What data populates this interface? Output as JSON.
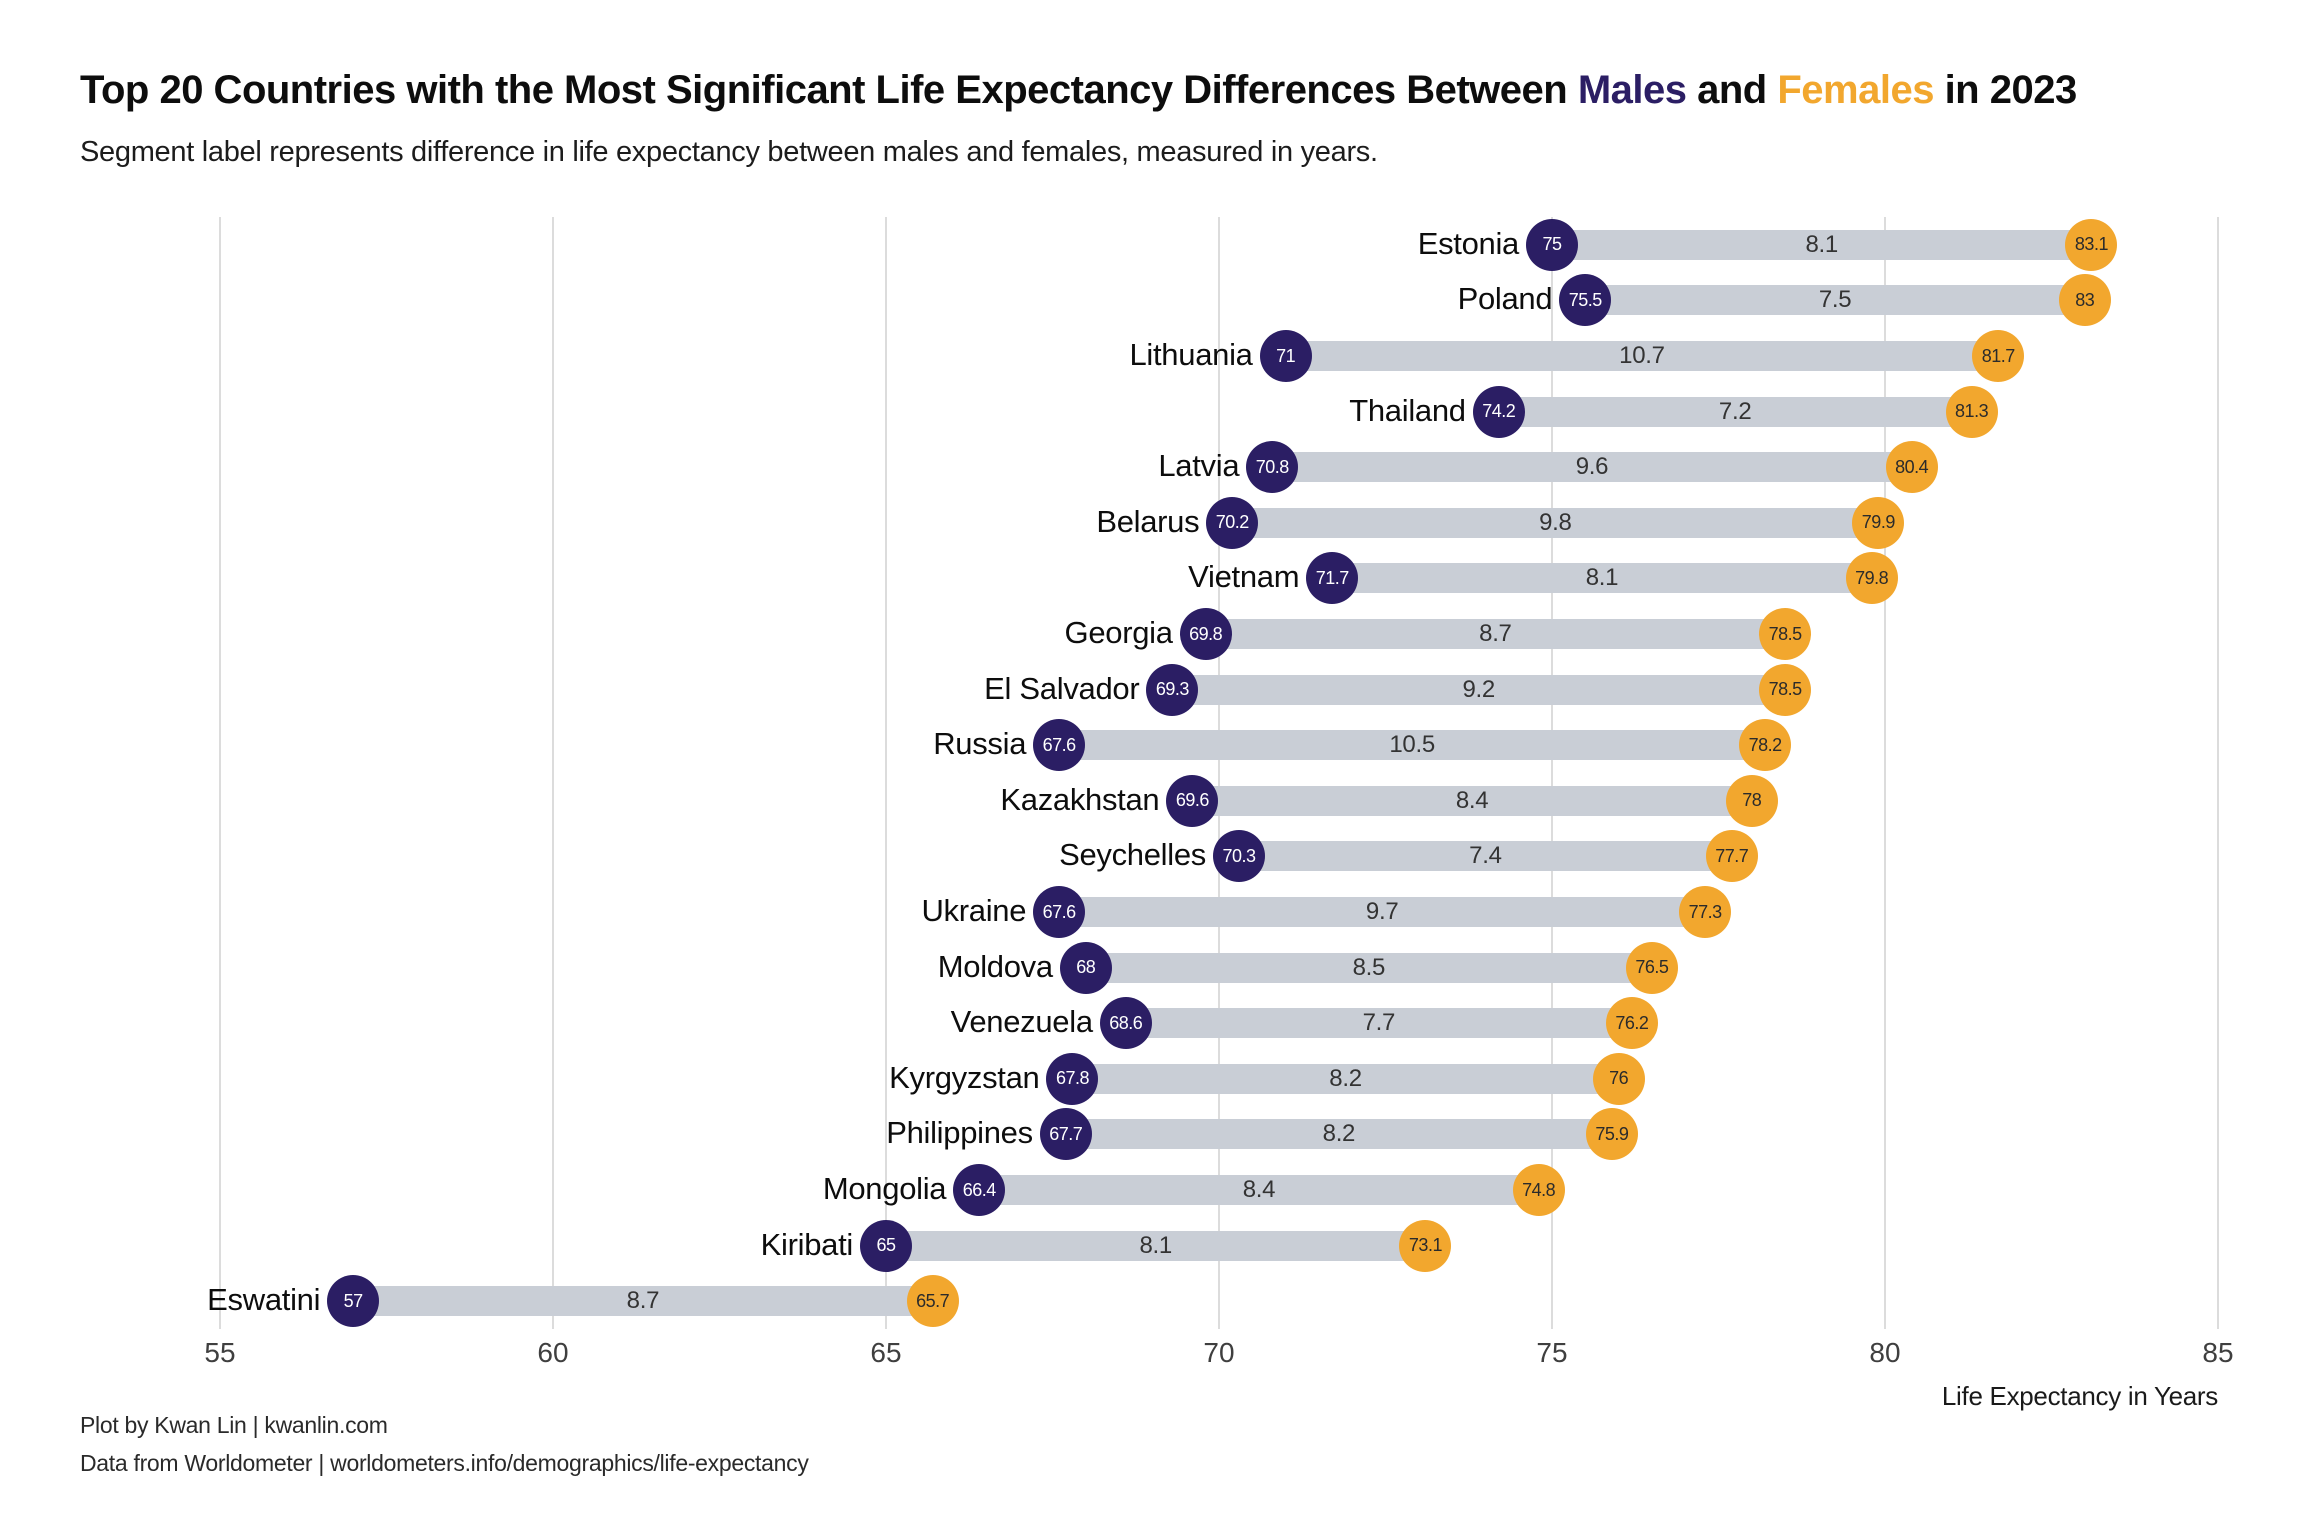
{
  "title": {
    "prefix": "Top 20 Countries with the Most Significant Life Expectancy Differences Between ",
    "males": "Males",
    "and": " and ",
    "females": "Females",
    "suffix": " in 2023"
  },
  "subtitle": "Segment label represents difference in life expectancy between males and females, measured in years.",
  "colors": {
    "male": "#2B1E64",
    "female": "#F2A72E",
    "bar": "#C9CED6",
    "gridline": "#DCDCDC",
    "diff_text": "#333333"
  },
  "axis": {
    "label": "Life Expectancy in Years",
    "min": 55,
    "max": 85,
    "ticks": [
      55,
      60,
      65,
      70,
      75,
      80,
      85
    ]
  },
  "footer": {
    "line1": "Plot by Kwan Lin | kwanlin.com",
    "line2": "Data from Worldometer | worldometers.info/demographics/life-expectancy"
  },
  "chart_data": {
    "type": "bar",
    "variant": "dumbbell",
    "orientation": "horizontal",
    "title": "Top 20 Countries with the Most Significant Life Expectancy Differences Between Males and Females in 2023",
    "xlabel": "Life Expectancy in Years",
    "ylabel": "",
    "xlim": [
      55,
      85
    ],
    "xticks": [
      55,
      60,
      65,
      70,
      75,
      80,
      85
    ],
    "grid": true,
    "legend": false,
    "categories": [
      "Estonia",
      "Poland",
      "Lithuania",
      "Thailand",
      "Latvia",
      "Belarus",
      "Vietnam",
      "Georgia",
      "El Salvador",
      "Russia",
      "Kazakhstan",
      "Seychelles",
      "Ukraine",
      "Moldova",
      "Venezuela",
      "Kyrgyzstan",
      "Philippines",
      "Mongolia",
      "Kiribati",
      "Eswatini"
    ],
    "series": [
      {
        "name": "Male",
        "color": "#2B1E64",
        "values": [
          75,
          75.5,
          71,
          74.2,
          70.8,
          70.2,
          71.7,
          69.8,
          69.3,
          67.6,
          69.6,
          70.3,
          67.6,
          68,
          68.6,
          67.8,
          67.7,
          66.4,
          65,
          57
        ]
      },
      {
        "name": "Female",
        "color": "#F2A72E",
        "values": [
          83.1,
          83,
          81.7,
          81.3,
          80.4,
          79.9,
          79.8,
          78.5,
          78.5,
          78.2,
          78,
          77.7,
          77.3,
          76.5,
          76.2,
          76,
          75.9,
          74.8,
          73.1,
          65.7
        ]
      },
      {
        "name": "Difference",
        "values": [
          8.1,
          7.5,
          10.7,
          7.2,
          9.6,
          9.8,
          8.1,
          8.7,
          9.2,
          10.5,
          8.4,
          7.4,
          9.7,
          8.5,
          7.7,
          8.2,
          8.2,
          8.4,
          8.1,
          8.7
        ]
      }
    ]
  }
}
